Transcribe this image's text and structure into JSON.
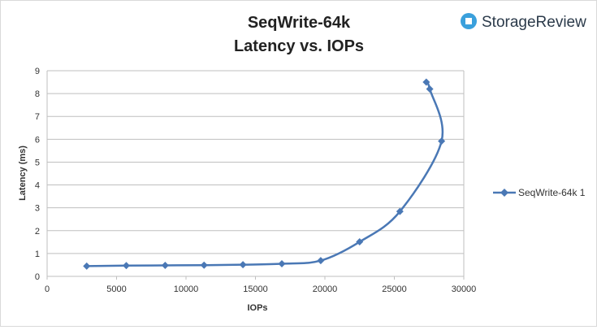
{
  "colors": {
    "series": "#4a78b5",
    "grid": "#bfbfbf",
    "logo": "#3aa0dc"
  },
  "logo": {
    "text": "StorageReview",
    "icon": "storagereview-logo-icon"
  },
  "chart_data": {
    "type": "scatter",
    "title": [
      "SeqWrite-64k",
      "Latency vs. IOPs"
    ],
    "xlabel": "IOPs",
    "ylabel": "Latency (ms)",
    "xlim": [
      0,
      30000
    ],
    "ylim": [
      0,
      9
    ],
    "xticks": [
      0,
      5000,
      10000,
      15000,
      20000,
      25000,
      30000
    ],
    "yticks": [
      0,
      1,
      2,
      3,
      4,
      5,
      6,
      7,
      8,
      9
    ],
    "grid": true,
    "smooth": true,
    "legend_position": "right",
    "series": [
      {
        "name": "SeqWrite-64k 1",
        "x": [
          2850,
          5700,
          8500,
          11300,
          14100,
          16900,
          19700,
          22500,
          25400,
          28400,
          27550,
          27300
        ],
        "y": [
          0.45,
          0.47,
          0.48,
          0.49,
          0.51,
          0.55,
          0.69,
          1.51,
          2.84,
          5.92,
          8.2,
          8.5
        ]
      }
    ]
  }
}
